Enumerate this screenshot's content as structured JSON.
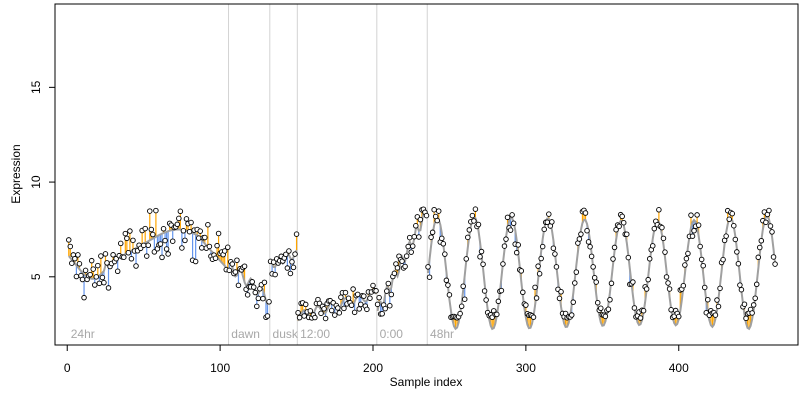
{
  "chart_data": {
    "type": "scatter",
    "title": "",
    "xlabel": "Sample index",
    "ylabel": "Expression",
    "xlim": [
      -8,
      478
    ],
    "ylim": [
      1.4,
      19.4
    ],
    "x_ticks": [
      0,
      100,
      200,
      300,
      400
    ],
    "y_ticks": [
      5,
      10,
      15
    ],
    "grid": false,
    "legend": "none",
    "colors": {
      "above_fit": "#ffa500",
      "below_fit": "#6495ed",
      "fit_line": "#a0a0a0",
      "separator": "#d3d3d3",
      "annotation": "#a8a8a8",
      "point_fill": "#ffffff",
      "point_stroke": "#000000"
    },
    "segments": [
      {
        "label": "24hr",
        "x_start": 1,
        "x_end": 105
      },
      {
        "label": "dawn",
        "x_start": 106,
        "x_end": 132
      },
      {
        "label": "dusk",
        "x_start": 133,
        "x_end": 150
      },
      {
        "label": "12:00",
        "x_start": 151,
        "x_end": 202
      },
      {
        "label": "0:00",
        "x_start": 203,
        "x_end": 235
      },
      {
        "label": "48hr",
        "x_start": 236,
        "x_end": 463
      }
    ],
    "separators_x": [
      105.5,
      132.5,
      150.5,
      202.5,
      235.5
    ],
    "series": [
      {
        "name": "",
        "x_start": 1,
        "x_end": 463,
        "n_points": 463,
        "values": "~5.6–6.5 at start, rising to ~7.5 near x=60–90, falling to ~5.0 near x=100; ~3.5–5.5 for x=106–132; ~5.5–6.5 for x=133–150; ~3.0–4.5 for x=151–202; ~4.5–8.7 for x=203–235; oscillating ~2.8–8.4 for x=236–463"
      }
    ]
  }
}
